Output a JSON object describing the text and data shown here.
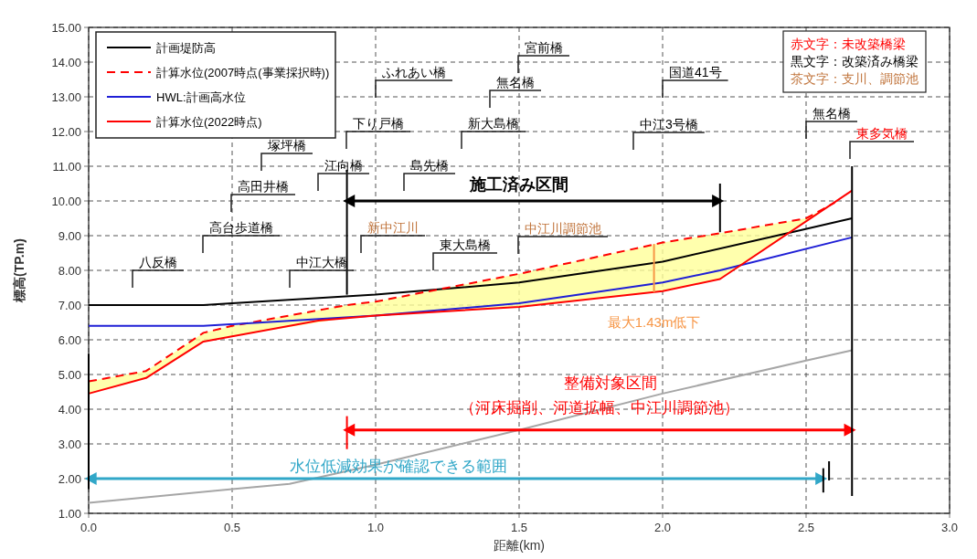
{
  "chart_data": {
    "type": "line",
    "xlabel": "距離(km)",
    "ylabel": "標高(TP.m)",
    "xlim": [
      0,
      3
    ],
    "ylim": [
      1,
      15
    ],
    "xticks": [
      {
        "value": 0,
        "label": "0.0"
      },
      {
        "value": 0.5,
        "label": "0.5"
      },
      {
        "value": 1,
        "label": "1.0"
      },
      {
        "value": 1.5,
        "label": "1.5"
      },
      {
        "value": 2,
        "label": "2.0"
      },
      {
        "value": 2.5,
        "label": "2.5"
      },
      {
        "value": 3,
        "label": "3.0"
      }
    ],
    "yticks": [
      {
        "value": 1,
        "label": "1.00"
      },
      {
        "value": 2,
        "label": "2.00"
      },
      {
        "value": 3,
        "label": "3.00"
      },
      {
        "value": 4,
        "label": "4.00"
      },
      {
        "value": 5,
        "label": "5.00"
      },
      {
        "value": 6,
        "label": "6.00"
      },
      {
        "value": 7,
        "label": "7.00"
      },
      {
        "value": 8,
        "label": "8.00"
      },
      {
        "value": 9,
        "label": "9.00"
      },
      {
        "value": 10,
        "label": "10.00"
      },
      {
        "value": 11,
        "label": "11.00"
      },
      {
        "value": 12,
        "label": "12.00"
      },
      {
        "value": 13,
        "label": "13.00"
      },
      {
        "value": 14,
        "label": "14.00"
      },
      {
        "value": 15,
        "label": "15.00"
      }
    ],
    "grid": true,
    "legend": "top left",
    "marker": "none",
    "series": [
      {
        "name": "計画堤防高",
        "color": "#000000",
        "line_style": "solid",
        "x": [
          0,
          0.4,
          0.5,
          1.0,
          1.5,
          2.0,
          2.45,
          2.66
        ],
        "values": [
          7.0,
          7.0,
          7.05,
          7.3,
          7.65,
          8.25,
          9.1,
          9.5
        ]
      },
      {
        "name": "計算水位(2007時点(事業採択時))",
        "color": "#ff0000",
        "line_style": "dashed",
        "x": [
          0,
          0.2,
          0.4,
          0.5,
          0.9,
          1.0,
          1.5,
          2.0,
          2.2,
          2.5,
          2.6
        ],
        "values": [
          4.8,
          5.1,
          6.2,
          6.4,
          7.0,
          7.1,
          7.9,
          8.8,
          9.07,
          9.5,
          9.95
        ],
        "lower": [
          4.45,
          4.9,
          5.95,
          6.1,
          6.63,
          6.7,
          6.95,
          7.4,
          7.75,
          9.41,
          9.95
        ],
        "upper": [
          4.8,
          5.1,
          6.2,
          6.4,
          7.0,
          7.1,
          7.9,
          8.8,
          9.07,
          9.5,
          9.95
        ]
      },
      {
        "name": "HWL:計画高水位",
        "color": "#1f1fd6",
        "line_style": "solid",
        "x": [
          0,
          0.4,
          1.0,
          1.5,
          2.0,
          2.2,
          2.66
        ],
        "values": [
          6.4,
          6.4,
          6.7,
          7.05,
          7.65,
          8.0,
          8.95
        ]
      },
      {
        "name": "計算水位(2022時点)",
        "color": "#ff0000",
        "line_style": "solid",
        "x": [
          0,
          0.2,
          0.4,
          0.5,
          0.8,
          1.0,
          1.5,
          2.0,
          2.2,
          2.66
        ],
        "values": [
          4.45,
          4.9,
          5.95,
          6.1,
          6.55,
          6.7,
          6.95,
          7.4,
          7.75,
          10.3
        ]
      },
      {
        "color": "#a6a6a6",
        "line_style": "solid",
        "x": [
          0,
          0.5,
          0.7,
          1.0,
          1.5,
          2.0,
          2.5,
          2.66
        ],
        "values": [
          1.3,
          1.7,
          1.85,
          2.4,
          3.4,
          4.45,
          5.4,
          5.7
        ]
      },
      {
        "color": "#000000",
        "marker": "triangle",
        "x": [
          0.9,
          2.2
        ],
        "values": [
          10.0,
          10.0
        ]
      },
      {
        "color": "#ff0000",
        "marker": "triangle",
        "x": [
          0.9,
          2.66
        ],
        "values": [
          3.4,
          3.4
        ]
      },
      {
        "color": "#31a7c8",
        "marker": "triangle",
        "x": [
          0,
          2.56
        ],
        "values": [
          2.0,
          2.0
        ]
      },
      {
        "color": "#f79646",
        "x": [
          1.97,
          1.97
        ],
        "values": [
          7.37,
          8.76
        ]
      },
      {
        "color": "#000000",
        "x": [
          0.9,
          0.9
        ],
        "values": [
          7.3,
          10.9
        ]
      },
      {
        "color": "#000000",
        "x": [
          2.2,
          2.2
        ],
        "values": [
          9.1,
          10.5
        ]
      },
      {
        "color": "#000000",
        "x": [
          2.66,
          2.66
        ],
        "values": [
          1.5,
          11.0
        ]
      },
      {
        "color": "#000000",
        "x": [
          0,
          0
        ],
        "values": [
          1.7,
          5.6
        ]
      },
      {
        "color": "#ff0000",
        "x": [
          0.9,
          0.9
        ],
        "values": [
          2.85,
          3.8
        ]
      },
      {
        "color": "#000000",
        "x": [
          2.56,
          2.56
        ],
        "values": [
          1.6,
          2.3
        ]
      },
      {
        "color": "#000000",
        "x": [
          2.58,
          2.58
        ],
        "values": [
          1.95,
          2.5
        ]
      }
    ],
    "annotations": [
      "八反橋",
      "高台歩道橋",
      "高田井橋",
      "塚坪橋",
      "中江大橋",
      "江向橋",
      "下り戸橋",
      "新中江川",
      "ふれあい橋",
      "島先橋",
      "東大島橋",
      "新大島橋",
      "無名橋",
      "宮前橋",
      "中江川調節池",
      "中江3号橋",
      "国道41号",
      "無名橋",
      "東多気橋",
      "赤文字：未改築橋梁",
      "黒文字：改築済み橋梁",
      "茶文字：支川、調節池",
      {
        "text": "施工済み区間",
        "x": 1.5,
        "y": 10.0
      },
      {
        "text": "整備対象区間",
        "x": 1.82,
        "y": 3.4
      },
      {
        "text": "（河床掘削、河道拡幅、中江川調節池）",
        "x": 1.78,
        "y": 3.4
      },
      {
        "text": "水位低減効果が確認できる範囲",
        "x": 1.08,
        "y": 2.0
      },
      {
        "text": "最大1.43m低下",
        "x": 1.97,
        "y": 7.37
      }
    ]
  }
}
